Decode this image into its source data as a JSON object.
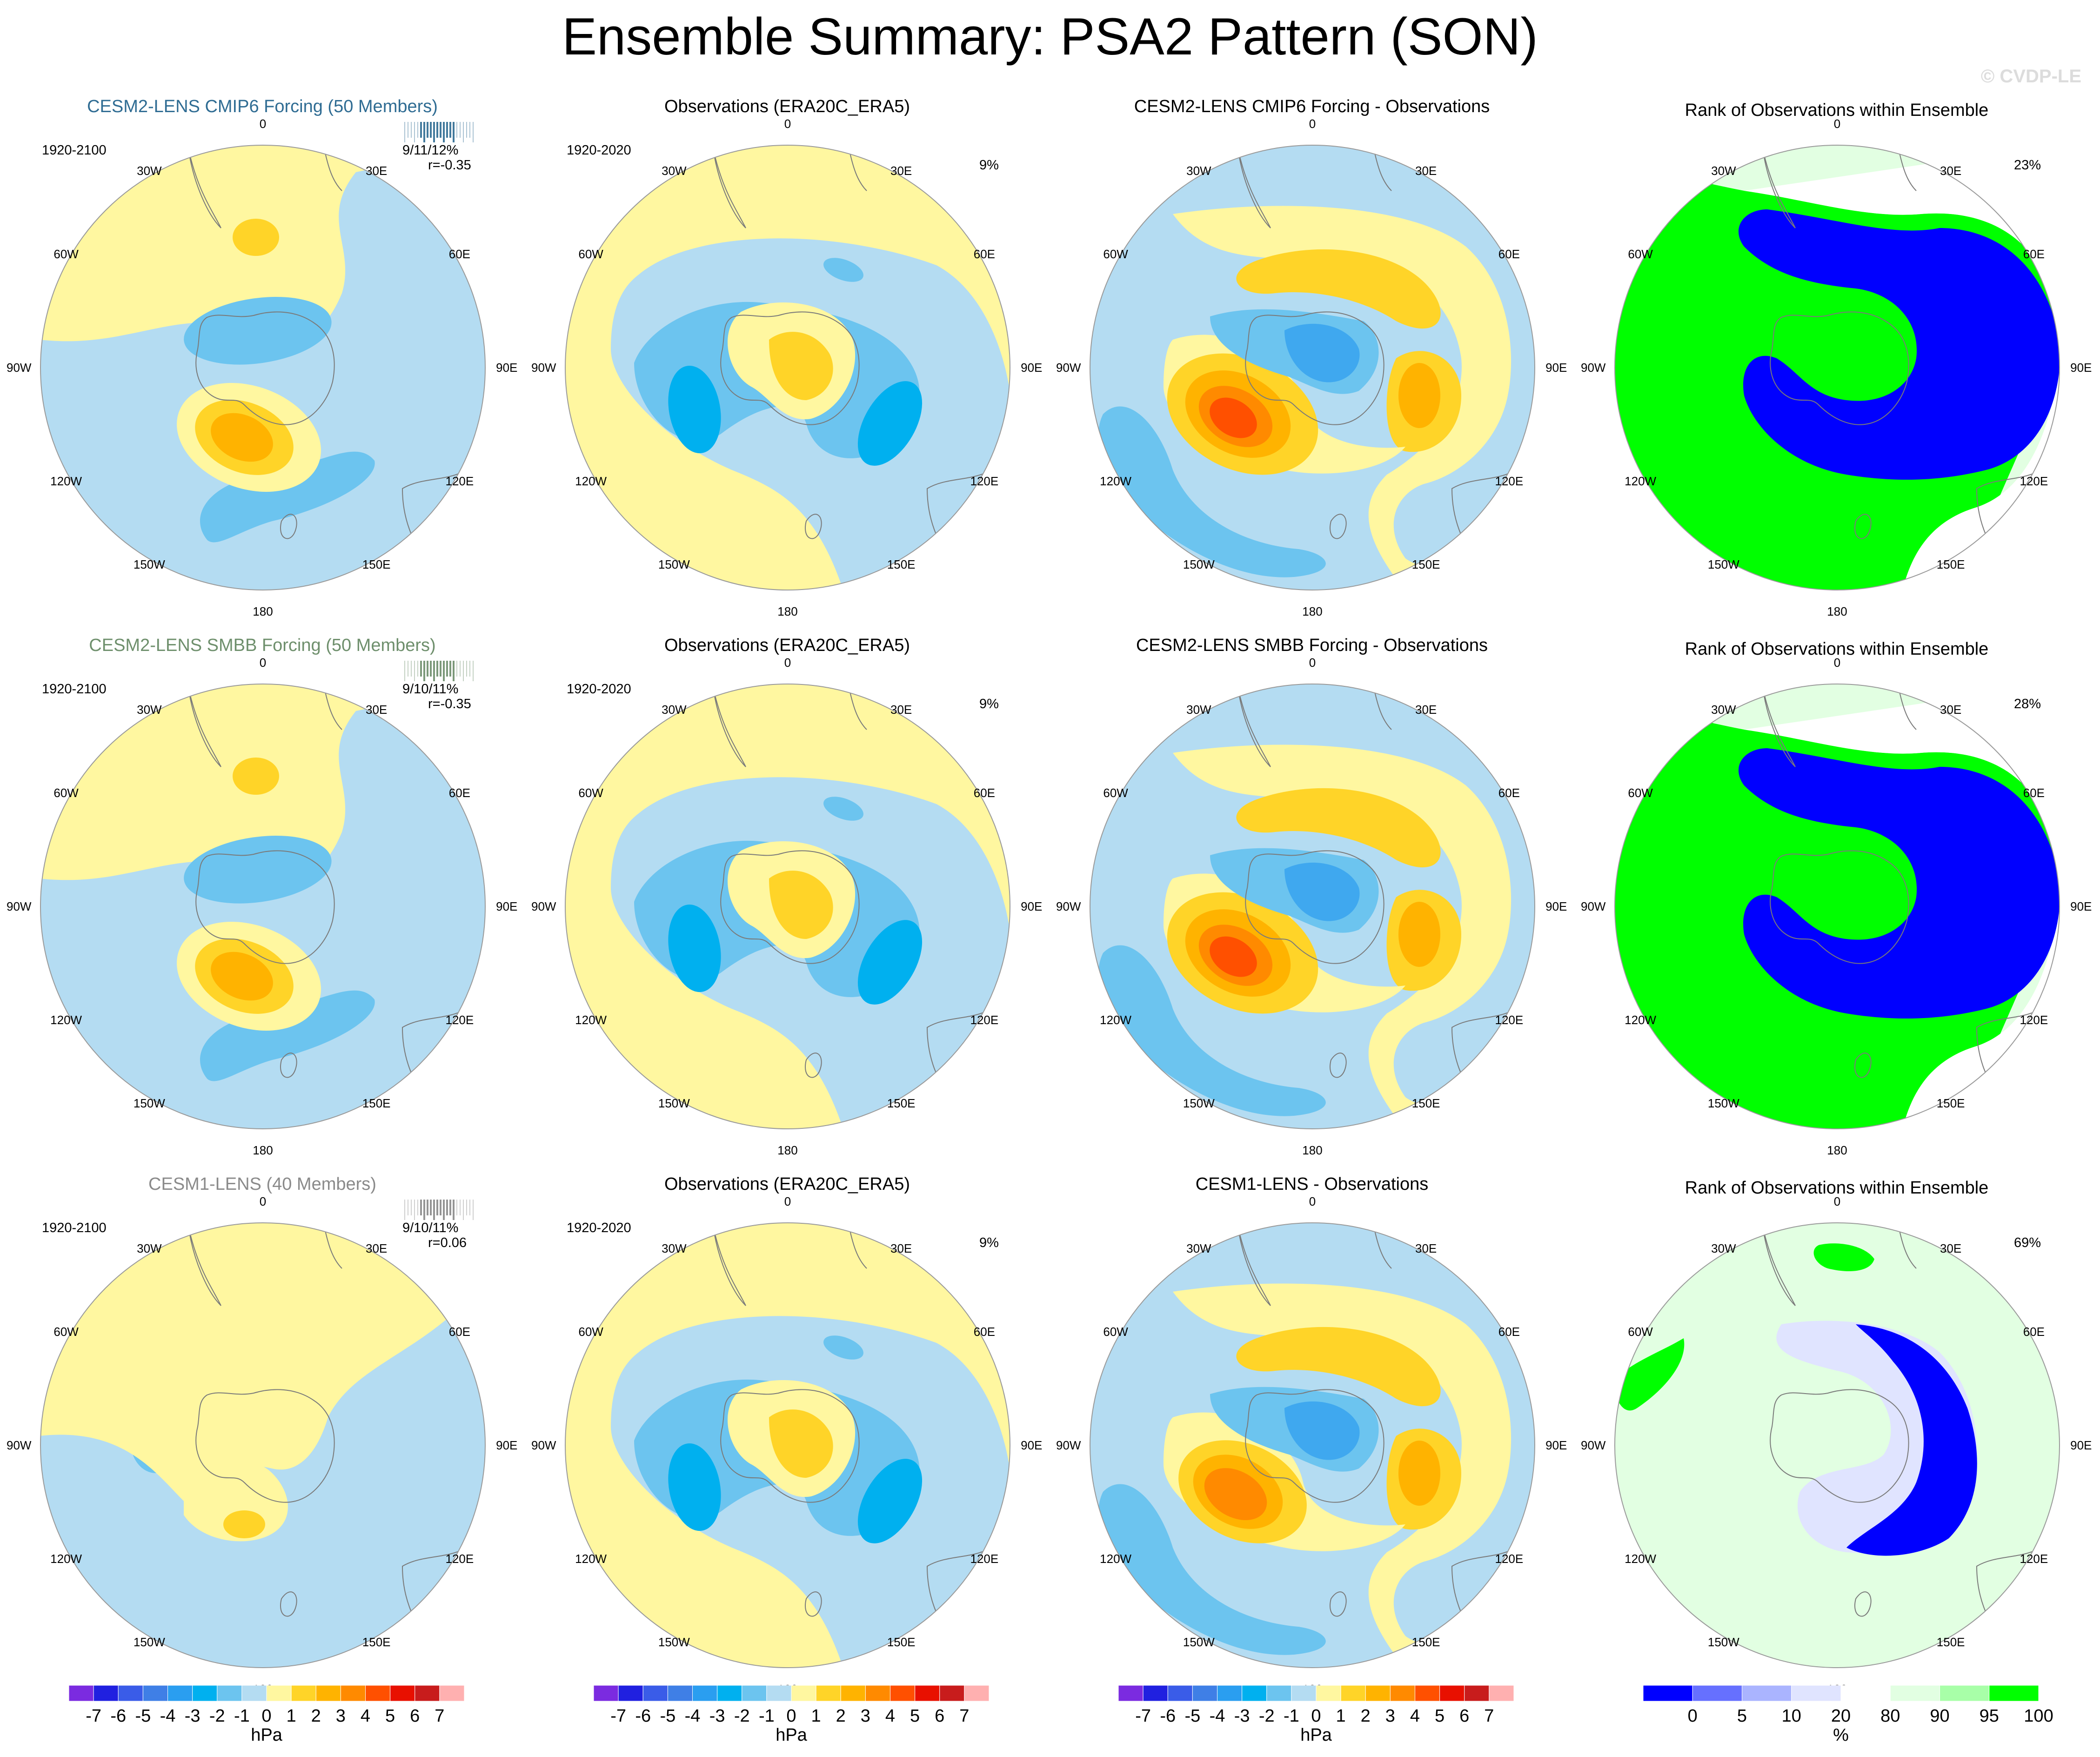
{
  "title": "Ensemble Summary: PSA2 Pattern (SON)",
  "copyright": "© CVDP-LE",
  "longitude_labels": [
    "0",
    "30E",
    "60E",
    "90E",
    "120E",
    "150E",
    "180",
    "150W",
    "120W",
    "90W",
    "60W",
    "30W"
  ],
  "colors": {
    "land_outline": "#7a7a7a",
    "ocean_base": "#b4dcf2",
    "rows": [
      "#2f6c93",
      "#6e8f6c",
      "#8a8a8a"
    ]
  },
  "rows": [
    {
      "ensemble": {
        "title": "CESM2-LENS CMIP6 Forcing (50 Members)",
        "period": "1920-2100",
        "stats": "9/11/12%",
        "corr": "r=-0.35"
      },
      "obs": {
        "title": "Observations (ERA20C_ERA5)",
        "period": "1920-2020",
        "pct": "9%"
      },
      "diff": {
        "title": "CESM2-LENS CMIP6 Forcing - Observations"
      },
      "rank": {
        "title": "Rank of Observations within Ensemble",
        "pct": "23%"
      }
    },
    {
      "ensemble": {
        "title": "CESM2-LENS SMBB Forcing (50 Members)",
        "period": "1920-2100",
        "stats": "9/10/11%",
        "corr": "r=-0.35"
      },
      "obs": {
        "title": "Observations (ERA20C_ERA5)",
        "period": "1920-2020",
        "pct": "9%"
      },
      "diff": {
        "title": "CESM2-LENS SMBB Forcing - Observations"
      },
      "rank": {
        "title": "Rank of Observations within Ensemble",
        "pct": "28%"
      }
    },
    {
      "ensemble": {
        "title": "CESM1-LENS (40 Members)",
        "period": "1920-2100",
        "stats": "9/10/11%",
        "corr": "r=0.06"
      },
      "obs": {
        "title": "Observations (ERA20C_ERA5)",
        "period": "1920-2020",
        "pct": "9%"
      },
      "diff": {
        "title": "CESM1-LENS - Observations"
      },
      "rank": {
        "title": "Rank of Observations within Ensemble",
        "pct": "69%"
      }
    }
  ],
  "chart_data": [
    {
      "type": "heatmap",
      "projection": "south-polar stereographic",
      "units": "hPa",
      "colorbar": {
        "tick_labels": [
          "-7",
          "-6",
          "-5",
          "-4",
          "-3",
          "-2",
          "-1",
          "0",
          "1",
          "2",
          "3",
          "4",
          "5",
          "6",
          "7"
        ],
        "colors": [
          "#7b2be0",
          "#2020e0",
          "#3a5ce8",
          "#3f7fe6",
          "#2a9ef0",
          "#00b0ef",
          "#6cc4ef",
          "#b4dcf2",
          "#fff7a0",
          "#ffd428",
          "#ffb300",
          "#ff8a00",
          "#ff5000",
          "#e81000",
          "#c81c1c",
          "#ffb0b0"
        ]
      },
      "panels": [
        "ensemble",
        "obs",
        "diff"
      ]
    },
    {
      "type": "heatmap",
      "projection": "south-polar stereographic",
      "units": "%",
      "colorbar": {
        "tick_labels": [
          "0",
          "5",
          "10",
          "20",
          "80",
          "90",
          "95",
          "100"
        ],
        "colors": [
          "#0000ff",
          "#6670ff",
          "#aab4ff",
          "#e0e4ff",
          "#ffffff",
          "#e2ffe2",
          "#a8ffa8",
          "#00ff00"
        ]
      },
      "panels": [
        "rank"
      ]
    }
  ]
}
